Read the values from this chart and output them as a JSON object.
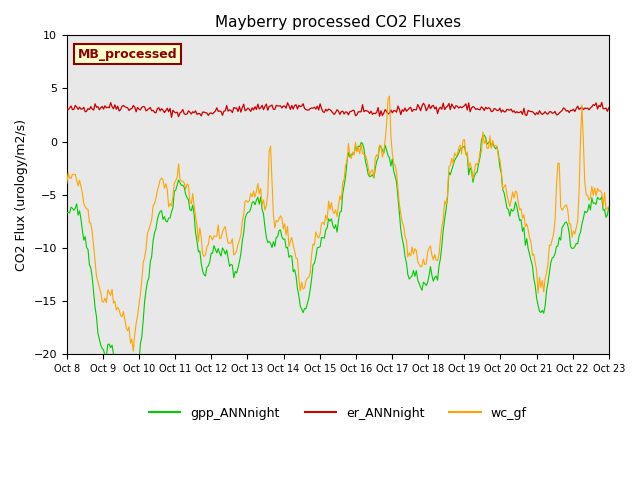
{
  "title": "Mayberry processed CO2 Fluxes",
  "ylabel": "CO2 Flux (urology/m2/s)",
  "ylim": [
    -20,
    10
  ],
  "yticks": [
    -20,
    -15,
    -10,
    -5,
    0,
    5,
    10
  ],
  "xlim": [
    0,
    360
  ],
  "xtick_positions": [
    0,
    24,
    48,
    72,
    96,
    120,
    144,
    168,
    192,
    216,
    240,
    264,
    288,
    312,
    336,
    360
  ],
  "xtick_labels": [
    "Oct 8",
    "Oct 9",
    "Oct 10",
    "Oct 11",
    "Oct 12",
    "Oct 13",
    "Oct 14",
    "Oct 15",
    "Oct 16",
    "Oct 17",
    "Oct 18",
    "Oct 19",
    "Oct 20",
    "Oct 21",
    "Oct 22",
    "Oct 23"
  ],
  "color_gpp": "#00CC00",
  "color_er": "#CC0000",
  "color_wc": "#FFA500",
  "inset_label": "MB_processed",
  "inset_facecolor": "#FFFFCC",
  "inset_edgecolor": "#8B0000",
  "legend_labels": [
    "gpp_ANNnight",
    "er_ANNnight",
    "wc_gf"
  ],
  "bg_color": "#E8E8E8"
}
